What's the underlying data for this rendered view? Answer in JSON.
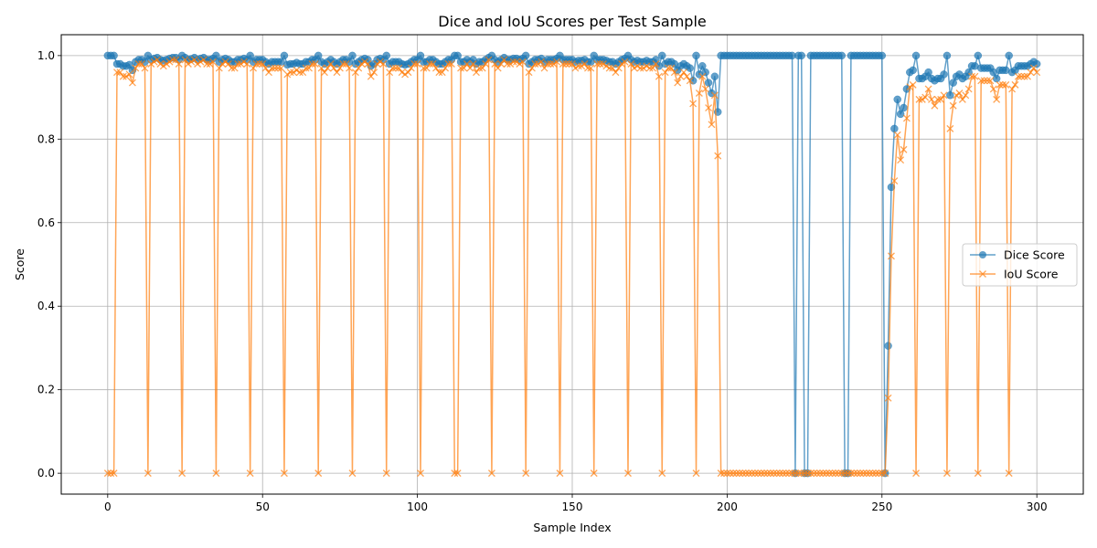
{
  "chart_data": {
    "type": "line",
    "title": "Dice and IoU Scores per Test Sample",
    "xlabel": "Sample Index",
    "ylabel": "Score",
    "xlim": [
      -15,
      315
    ],
    "ylim": [
      -0.05,
      1.05
    ],
    "xticks": [
      0,
      50,
      100,
      150,
      200,
      250,
      300
    ],
    "yticks": [
      0.0,
      0.2,
      0.4,
      0.6,
      0.8,
      1.0
    ],
    "ytick_labels": [
      "0.0",
      "0.2",
      "0.4",
      "0.6",
      "0.8",
      "1.0"
    ],
    "grid": true,
    "legend_position": "center-right",
    "x": [
      0,
      1,
      2,
      3,
      4,
      5,
      6,
      7,
      8,
      9,
      10,
      11,
      12,
      13,
      14,
      15,
      16,
      17,
      18,
      19,
      20,
      21,
      22,
      23,
      24,
      25,
      26,
      27,
      28,
      29,
      30,
      31,
      32,
      33,
      34,
      35,
      36,
      37,
      38,
      39,
      40,
      41,
      42,
      43,
      44,
      45,
      46,
      47,
      48,
      49,
      50,
      51,
      52,
      53,
      54,
      55,
      56,
      57,
      58,
      59,
      60,
      61,
      62,
      63,
      64,
      65,
      66,
      67,
      68,
      69,
      70,
      71,
      72,
      73,
      74,
      75,
      76,
      77,
      78,
      79,
      80,
      81,
      82,
      83,
      84,
      85,
      86,
      87,
      88,
      89,
      90,
      91,
      92,
      93,
      94,
      95,
      96,
      97,
      98,
      99,
      100,
      101,
      102,
      103,
      104,
      105,
      106,
      107,
      108,
      109,
      110,
      111,
      112,
      113,
      114,
      115,
      116,
      117,
      118,
      119,
      120,
      121,
      122,
      123,
      124,
      125,
      126,
      127,
      128,
      129,
      130,
      131,
      132,
      133,
      134,
      135,
      136,
      137,
      138,
      139,
      140,
      141,
      142,
      143,
      144,
      145,
      146,
      147,
      148,
      149,
      150,
      151,
      152,
      153,
      154,
      155,
      156,
      157,
      158,
      159,
      160,
      161,
      162,
      163,
      164,
      165,
      166,
      167,
      168,
      169,
      170,
      171,
      172,
      173,
      174,
      175,
      176,
      177,
      178,
      179,
      180,
      181,
      182,
      183,
      184,
      185,
      186,
      187,
      188,
      189,
      190,
      191,
      192,
      193,
      194,
      195,
      196,
      197,
      198,
      199,
      200,
      201,
      202,
      203,
      204,
      205,
      206,
      207,
      208,
      209,
      210,
      211,
      212,
      213,
      214,
      215,
      216,
      217,
      218,
      219,
      220,
      221,
      222,
      223,
      224,
      225,
      226,
      227,
      228,
      229,
      230,
      231,
      232,
      233,
      234,
      235,
      236,
      237,
      238,
      239,
      240,
      241,
      242,
      243,
      244,
      245,
      246,
      247,
      248,
      249,
      250,
      251,
      252,
      253,
      254,
      255,
      256,
      257,
      258,
      259,
      260,
      261,
      262,
      263,
      264,
      265,
      266,
      267,
      268,
      269,
      270,
      271,
      272,
      273,
      274,
      275,
      276,
      277,
      278,
      279,
      280,
      281,
      282,
      283,
      284,
      285,
      286,
      287,
      288,
      289,
      290,
      291,
      292,
      293,
      294,
      295,
      296,
      297,
      298,
      299,
      300
    ],
    "series": [
      {
        "name": "Dice Score",
        "color": "#1f77b4",
        "marker": "circle",
        "values": [
          1.0,
          1.0,
          1.0,
          0.98,
          0.98,
          0.975,
          0.975,
          0.978,
          0.965,
          0.985,
          0.99,
          0.99,
          0.985,
          1.0,
          0.99,
          0.993,
          0.995,
          0.99,
          0.988,
          0.99,
          0.993,
          0.995,
          0.995,
          0.99,
          1.0,
          0.995,
          0.99,
          0.992,
          0.995,
          0.99,
          0.993,
          0.995,
          0.99,
          0.99,
          0.993,
          1.0,
          0.985,
          0.99,
          0.993,
          0.99,
          0.985,
          0.985,
          0.99,
          0.99,
          0.993,
          0.99,
          1.0,
          0.985,
          0.99,
          0.99,
          0.99,
          0.985,
          0.98,
          0.985,
          0.985,
          0.985,
          0.985,
          1.0,
          0.978,
          0.98,
          0.98,
          0.983,
          0.98,
          0.98,
          0.985,
          0.985,
          0.99,
          0.99,
          1.0,
          0.985,
          0.98,
          0.985,
          0.99,
          0.985,
          0.98,
          0.985,
          0.99,
          0.99,
          0.985,
          1.0,
          0.98,
          0.985,
          0.99,
          0.993,
          0.99,
          0.975,
          0.98,
          0.99,
          0.993,
          0.99,
          1.0,
          0.98,
          0.985,
          0.985,
          0.985,
          0.98,
          0.978,
          0.98,
          0.985,
          0.99,
          0.99,
          1.0,
          0.985,
          0.985,
          0.99,
          0.99,
          0.985,
          0.98,
          0.98,
          0.985,
          0.99,
          0.99,
          1.0,
          1.0,
          0.985,
          0.985,
          0.99,
          0.985,
          0.99,
          0.98,
          0.985,
          0.985,
          0.99,
          0.995,
          1.0,
          0.99,
          0.985,
          0.99,
          0.995,
          0.99,
          0.99,
          0.993,
          0.993,
          0.99,
          0.993,
          1.0,
          0.98,
          0.985,
          0.99,
          0.99,
          0.993,
          0.985,
          0.99,
          0.99,
          0.99,
          0.993,
          1.0,
          0.99,
          0.99,
          0.99,
          0.99,
          0.985,
          0.988,
          0.988,
          0.99,
          0.985,
          0.985,
          1.0,
          0.99,
          0.99,
          0.99,
          0.988,
          0.985,
          0.985,
          0.98,
          0.985,
          0.99,
          0.993,
          1.0,
          0.99,
          0.985,
          0.988,
          0.985,
          0.985,
          0.988,
          0.985,
          0.985,
          0.99,
          0.975,
          1.0,
          0.98,
          0.985,
          0.985,
          0.98,
          0.965,
          0.975,
          0.98,
          0.975,
          0.97,
          0.94,
          1.0,
          0.955,
          0.975,
          0.96,
          0.935,
          0.91,
          0.95,
          0.865,
          1.0,
          1.0,
          1.0,
          1.0,
          1.0,
          1.0,
          1.0,
          1.0,
          1.0,
          1.0,
          1.0,
          1.0,
          1.0,
          1.0,
          1.0,
          1.0,
          1.0,
          1.0,
          1.0,
          1.0,
          1.0,
          1.0,
          1.0,
          1.0,
          0.0,
          1.0,
          1.0,
          0.0,
          0.0,
          1.0,
          1.0,
          1.0,
          1.0,
          1.0,
          1.0,
          1.0,
          1.0,
          1.0,
          1.0,
          1.0,
          0.0,
          0.0,
          1.0,
          1.0,
          1.0,
          1.0,
          1.0,
          1.0,
          1.0,
          1.0,
          1.0,
          1.0,
          1.0,
          0.0,
          0.305,
          0.685,
          0.825,
          0.895,
          0.86,
          0.875,
          0.92,
          0.96,
          0.965,
          1.0,
          0.945,
          0.945,
          0.95,
          0.96,
          0.945,
          0.94,
          0.945,
          0.945,
          0.955,
          1.0,
          0.905,
          0.935,
          0.95,
          0.955,
          0.945,
          0.95,
          0.96,
          0.975,
          0.975,
          1.0,
          0.97,
          0.97,
          0.97,
          0.97,
          0.96,
          0.945,
          0.965,
          0.965,
          0.965,
          1.0,
          0.96,
          0.965,
          0.975,
          0.975,
          0.975,
          0.975,
          0.98,
          0.985,
          0.98
        ]
      },
      {
        "name": "IoU Score",
        "color": "#ff7f0e",
        "marker": "x",
        "values": [
          0.0,
          0.0,
          0.0,
          0.96,
          0.96,
          0.95,
          0.95,
          0.955,
          0.935,
          0.97,
          0.98,
          0.98,
          0.97,
          0.0,
          0.98,
          0.985,
          0.99,
          0.98,
          0.975,
          0.98,
          0.985,
          0.99,
          0.99,
          0.98,
          0.0,
          0.99,
          0.98,
          0.985,
          0.99,
          0.98,
          0.985,
          0.99,
          0.98,
          0.98,
          0.985,
          0.0,
          0.97,
          0.98,
          0.985,
          0.98,
          0.97,
          0.97,
          0.98,
          0.98,
          0.985,
          0.98,
          0.0,
          0.97,
          0.98,
          0.98,
          0.98,
          0.97,
          0.96,
          0.97,
          0.97,
          0.97,
          0.97,
          0.0,
          0.955,
          0.96,
          0.96,
          0.965,
          0.96,
          0.96,
          0.97,
          0.97,
          0.98,
          0.98,
          0.0,
          0.97,
          0.96,
          0.97,
          0.98,
          0.97,
          0.96,
          0.97,
          0.98,
          0.98,
          0.97,
          0.0,
          0.96,
          0.97,
          0.98,
          0.985,
          0.98,
          0.95,
          0.96,
          0.98,
          0.985,
          0.98,
          0.0,
          0.96,
          0.97,
          0.97,
          0.97,
          0.96,
          0.955,
          0.96,
          0.97,
          0.98,
          0.98,
          0.0,
          0.97,
          0.97,
          0.98,
          0.98,
          0.97,
          0.96,
          0.96,
          0.97,
          0.98,
          0.98,
          0.0,
          0.0,
          0.97,
          0.97,
          0.98,
          0.97,
          0.98,
          0.96,
          0.97,
          0.97,
          0.98,
          0.99,
          0.0,
          0.98,
          0.97,
          0.98,
          0.99,
          0.98,
          0.98,
          0.985,
          0.985,
          0.98,
          0.985,
          0.0,
          0.96,
          0.97,
          0.98,
          0.98,
          0.985,
          0.97,
          0.98,
          0.98,
          0.98,
          0.985,
          0.0,
          0.98,
          0.98,
          0.98,
          0.98,
          0.97,
          0.975,
          0.975,
          0.98,
          0.97,
          0.97,
          0.0,
          0.98,
          0.98,
          0.98,
          0.975,
          0.97,
          0.97,
          0.96,
          0.97,
          0.98,
          0.985,
          0.0,
          0.98,
          0.97,
          0.975,
          0.97,
          0.97,
          0.975,
          0.97,
          0.97,
          0.98,
          0.95,
          0.0,
          0.96,
          0.97,
          0.97,
          0.96,
          0.935,
          0.95,
          0.96,
          0.95,
          0.94,
          0.885,
          0.0,
          0.91,
          0.95,
          0.92,
          0.875,
          0.835,
          0.905,
          0.76,
          0.0,
          0.0,
          0.0,
          0.0,
          0.0,
          0.0,
          0.0,
          0.0,
          0.0,
          0.0,
          0.0,
          0.0,
          0.0,
          0.0,
          0.0,
          0.0,
          0.0,
          0.0,
          0.0,
          0.0,
          0.0,
          0.0,
          0.0,
          0.0,
          0.0,
          0.0,
          0.0,
          0.0,
          0.0,
          0.0,
          0.0,
          0.0,
          0.0,
          0.0,
          0.0,
          0.0,
          0.0,
          0.0,
          0.0,
          0.0,
          0.0,
          0.0,
          0.0,
          0.0,
          0.0,
          0.0,
          0.0,
          0.0,
          0.0,
          0.0,
          0.0,
          0.0,
          0.0,
          0.0,
          0.18,
          0.52,
          0.7,
          0.81,
          0.75,
          0.775,
          0.85,
          0.925,
          0.93,
          0.0,
          0.895,
          0.895,
          0.9,
          0.92,
          0.895,
          0.88,
          0.895,
          0.895,
          0.905,
          0.0,
          0.825,
          0.88,
          0.905,
          0.91,
          0.895,
          0.905,
          0.92,
          0.95,
          0.95,
          0.0,
          0.94,
          0.94,
          0.94,
          0.94,
          0.92,
          0.895,
          0.93,
          0.93,
          0.93,
          0.0,
          0.92,
          0.93,
          0.95,
          0.95,
          0.95,
          0.95,
          0.96,
          0.97,
          0.96
        ]
      }
    ]
  }
}
